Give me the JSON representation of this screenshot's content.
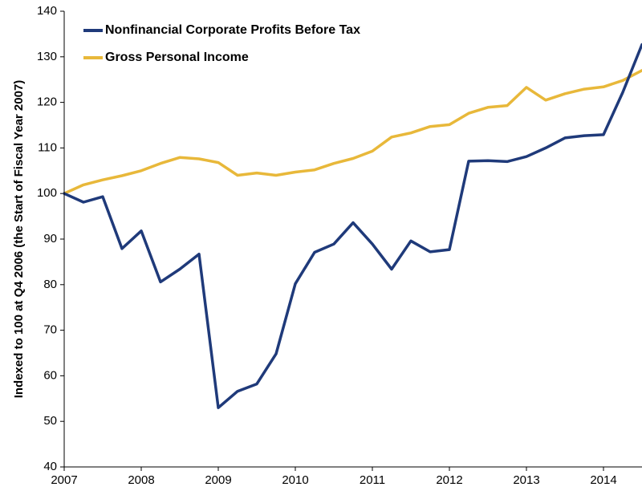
{
  "chart_data": {
    "type": "line",
    "ylabel": "Indexed to 100 at Q4 2006 (the Start of Fiscal Year 2007)",
    "xlabel": "",
    "ylim": [
      40,
      140
    ],
    "yticks": [
      "40",
      "50",
      "60",
      "70",
      "80",
      "90",
      "100",
      "110",
      "120",
      "130",
      "140"
    ],
    "xticks": [
      "2007",
      "2008",
      "2009",
      "2010",
      "2011",
      "2012",
      "2013",
      "2014"
    ],
    "x": [
      2007.0,
      2007.25,
      2007.5,
      2007.75,
      2008.0,
      2008.25,
      2008.5,
      2008.75,
      2009.0,
      2009.25,
      2009.5,
      2009.75,
      2010.0,
      2010.25,
      2010.5,
      2010.75,
      2011.0,
      2011.25,
      2011.5,
      2011.75,
      2012.0,
      2012.25,
      2012.5,
      2012.75,
      2013.0,
      2013.25,
      2013.5,
      2013.75,
      2014.0,
      2014.25,
      2014.5
    ],
    "grid": false,
    "legend_position": "top-left",
    "series": [
      {
        "name": "Nonfinancial Corporate Profits Before Tax",
        "color": "#1f3a7a",
        "values": [
          100.0,
          98.1,
          99.3,
          87.9,
          91.8,
          80.6,
          83.4,
          86.7,
          53.0,
          56.6,
          58.2,
          64.8,
          80.2,
          87.1,
          88.9,
          93.6,
          88.9,
          83.4,
          89.6,
          87.2,
          87.7,
          107.1,
          107.2,
          107.0,
          108.1,
          110.0,
          112.2,
          112.7,
          112.9,
          122.2,
          132.7
        ]
      },
      {
        "name": "Gross Personal Income",
        "color": "#e8b83a",
        "values": [
          100.0,
          101.9,
          103.0,
          103.9,
          105.0,
          106.6,
          107.9,
          107.6,
          106.8,
          104.0,
          104.5,
          104.0,
          104.7,
          105.2,
          106.6,
          107.7,
          109.3,
          112.4,
          113.3,
          114.7,
          115.1,
          117.6,
          118.9,
          119.3,
          123.3,
          120.5,
          121.9,
          122.9,
          123.4,
          124.8,
          127.0
        ]
      }
    ]
  }
}
